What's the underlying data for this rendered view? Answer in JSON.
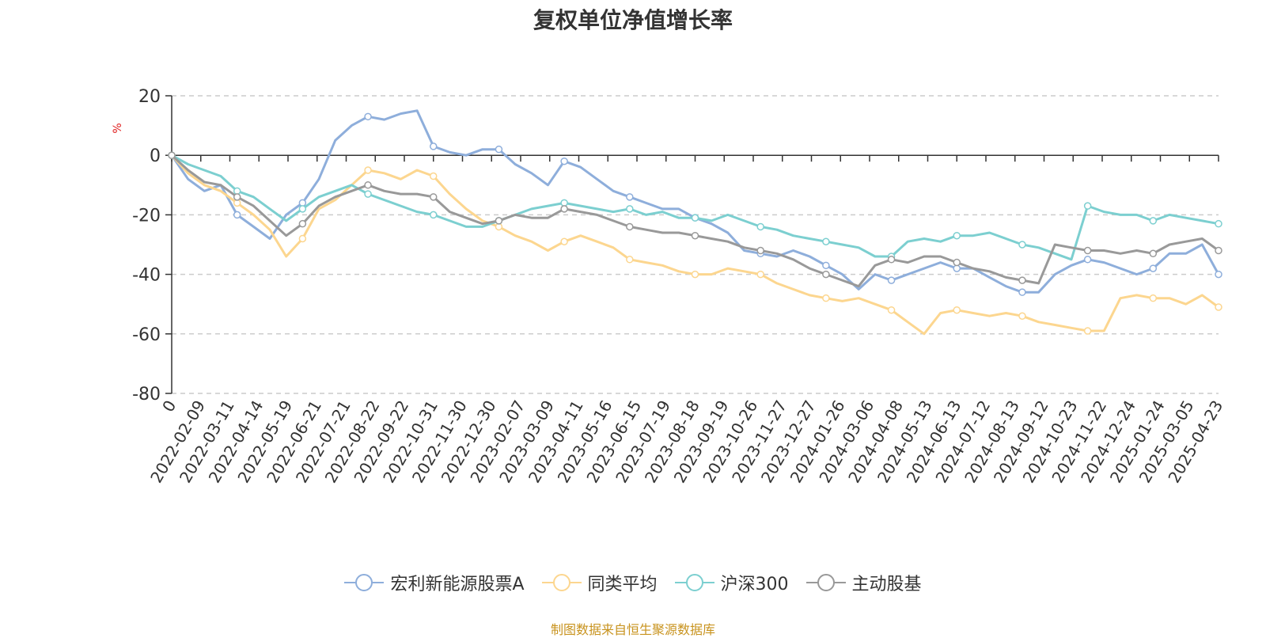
{
  "chart_data": {
    "type": "line",
    "title": "复权单位净值增长率",
    "ylabel": "%",
    "ylim": [
      -80,
      20
    ],
    "yticks": [
      20,
      0,
      -20,
      -40,
      -60,
      -80
    ],
    "grid": true,
    "legend_position": "bottom",
    "x_tick_labels": [
      "0",
      "2022-02-09",
      "2022-03-11",
      "2022-04-14",
      "2022-05-19",
      "2022-06-21",
      "2022-07-21",
      "2022-08-22",
      "2022-09-22",
      "2022-10-31",
      "2022-11-30",
      "2022-12-30",
      "2023-02-07",
      "2023-03-09",
      "2023-04-11",
      "2023-05-16",
      "2023-06-15",
      "2023-07-19",
      "2023-08-18",
      "2023-09-19",
      "2023-10-26",
      "2023-11-27",
      "2023-12-27",
      "2024-01-26",
      "2024-03-06",
      "2024-04-08",
      "2024-05-13",
      "2024-06-13",
      "2024-07-12",
      "2024-08-13",
      "2024-09-12",
      "2024-10-23",
      "2024-11-22",
      "2024-12-24",
      "2025-01-24",
      "2025-03-05",
      "2025-04-23"
    ],
    "series": [
      {
        "name": "宏利新能源股票A",
        "color": "#8eaedb",
        "values": [
          0,
          -8,
          -12,
          -10,
          -20,
          -24,
          -28,
          -20,
          -16,
          -8,
          5,
          10,
          13,
          12,
          14,
          15,
          3,
          1,
          0,
          2,
          2,
          -3,
          -6,
          -10,
          -2,
          -4,
          -8,
          -12,
          -14,
          -16,
          -18,
          -18,
          -21,
          -23,
          -26,
          -32,
          -33,
          -34,
          -32,
          -34,
          -37,
          -40,
          -45,
          -40,
          -42,
          -40,
          -38,
          -36,
          -38,
          -38,
          -41,
          -44,
          -46,
          -46,
          -40,
          -37,
          -35,
          -36,
          -38,
          -40,
          -38,
          -33,
          -33,
          -30,
          -40
        ]
      },
      {
        "name": "同类平均",
        "color": "#fcd68f",
        "values": [
          0,
          -6,
          -10,
          -12,
          -16,
          -20,
          -25,
          -34,
          -28,
          -18,
          -15,
          -10,
          -5,
          -6,
          -8,
          -5,
          -7,
          -13,
          -18,
          -22,
          -24,
          -27,
          -29,
          -32,
          -29,
          -27,
          -29,
          -31,
          -35,
          -36,
          -37,
          -39,
          -40,
          -40,
          -38,
          -39,
          -40,
          -43,
          -45,
          -47,
          -48,
          -49,
          -48,
          -50,
          -52,
          -56,
          -60,
          -53,
          -52,
          -53,
          -54,
          -53,
          -54,
          -56,
          -57,
          -58,
          -59,
          -59,
          -48,
          -47,
          -48,
          -48,
          -50,
          -47,
          -51
        ]
      },
      {
        "name": "沪深300",
        "color": "#7ccfd0",
        "values": [
          0,
          -3,
          -5,
          -7,
          -12,
          -14,
          -18,
          -22,
          -18,
          -14,
          -12,
          -10,
          -13,
          -15,
          -17,
          -19,
          -20,
          -22,
          -24,
          -24,
          -22,
          -20,
          -18,
          -17,
          -16,
          -17,
          -18,
          -19,
          -18,
          -20,
          -19,
          -21,
          -21,
          -22,
          -20,
          -22,
          -24,
          -25,
          -27,
          -28,
          -29,
          -30,
          -31,
          -34,
          -34,
          -29,
          -28,
          -29,
          -27,
          -27,
          -26,
          -28,
          -30,
          -31,
          -33,
          -35,
          -17,
          -19,
          -20,
          -20,
          -22,
          -20,
          -21,
          -22,
          -23
        ]
      },
      {
        "name": "主动股基",
        "color": "#999999",
        "values": [
          0,
          -5,
          -9,
          -10,
          -14,
          -17,
          -22,
          -27,
          -23,
          -17,
          -14,
          -12,
          -10,
          -12,
          -13,
          -13,
          -14,
          -19,
          -21,
          -23,
          -22,
          -20,
          -21,
          -21,
          -18,
          -19,
          -20,
          -22,
          -24,
          -25,
          -26,
          -26,
          -27,
          -28,
          -29,
          -31,
          -32,
          -33,
          -35,
          -38,
          -40,
          -42,
          -44,
          -37,
          -35,
          -36,
          -34,
          -34,
          -36,
          -38,
          -39,
          -41,
          -42,
          -43,
          -30,
          -31,
          -32,
          -32,
          -33,
          -32,
          -33,
          -30,
          -29,
          -28,
          -32
        ]
      }
    ]
  },
  "source_note": "制图数据来自恒生聚源数据库"
}
